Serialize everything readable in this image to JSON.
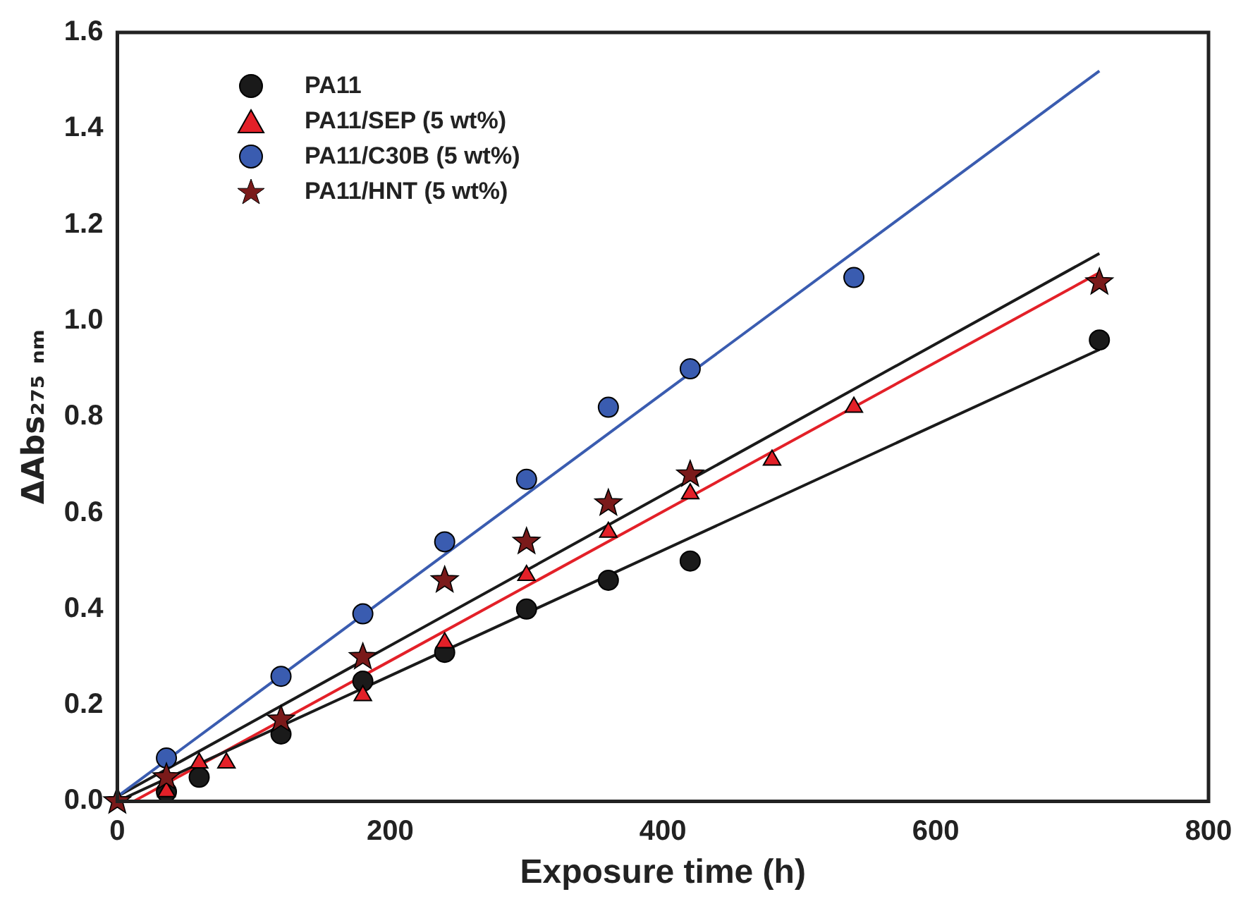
{
  "chart_data": {
    "type": "scatter",
    "xlabel": "Exposure time (h)",
    "ylabel": "ΔAbs₂₇₅ ₙₘ",
    "xlim": [
      0,
      800
    ],
    "xticks": [
      0,
      200,
      400,
      600,
      800
    ],
    "ylim": [
      0,
      1.6
    ],
    "yticks": [
      {
        "value": 0,
        "label": "0.0"
      },
      {
        "value": 0.2,
        "label": "0.2"
      },
      {
        "value": 0.4,
        "label": "0.4"
      },
      {
        "value": 0.6,
        "label": "0.6"
      },
      {
        "value": 0.8,
        "label": "0.8"
      },
      {
        "value": 1,
        "label": "1.0"
      },
      {
        "value": 1.2,
        "label": "1.2"
      },
      {
        "value": 1.4,
        "label": "1.4"
      },
      {
        "value": 1.6,
        "label": "1.6"
      }
    ],
    "grid": false,
    "legend": "top left",
    "series": [
      {
        "name": "PA11",
        "marker": "circle",
        "color": "#1a1a1a",
        "x": [
          36,
          60,
          120,
          180,
          240,
          300,
          360,
          420,
          720
        ],
        "values": [
          0.02,
          0.05,
          0.14,
          0.25,
          0.31,
          0.4,
          0.46,
          0.5,
          0.96
        ]
      },
      {
        "name": "PA11/SEP (5 wt%)",
        "marker": "triangle",
        "color": "#e32028",
        "x": [
          36,
          60,
          80,
          180,
          240,
          300,
          360,
          420,
          480,
          540
        ],
        "values": [
          0.02,
          0.08,
          0.08,
          0.22,
          0.33,
          0.47,
          0.56,
          0.64,
          0.71,
          0.82
        ]
      },
      {
        "name": "PA11/C30B (5 wt%)",
        "marker": "circle",
        "color": "#3a5cb0",
        "x": [
          36,
          120,
          180,
          240,
          300,
          360,
          420,
          540
        ],
        "values": [
          0.09,
          0.26,
          0.39,
          0.54,
          0.67,
          0.82,
          0.9,
          1.09
        ]
      },
      {
        "name": "PA11/HNT (5 wt%)",
        "marker": "star",
        "color": "#7a1a1a",
        "x": [
          0,
          36,
          120,
          180,
          240,
          300,
          360,
          420,
          720
        ],
        "values": [
          0,
          0.05,
          0.17,
          0.3,
          0.46,
          0.54,
          0.62,
          0.68,
          1.08
        ]
      },
      {
        "type": "line",
        "marker": "none",
        "color": "#1a1a1a",
        "x": [
          0,
          720
        ],
        "values": [
          0,
          0.94
        ]
      },
      {
        "type": "line",
        "marker": "none",
        "color": "#e32028",
        "x": [
          12,
          720
        ],
        "values": [
          0,
          1.1
        ]
      },
      {
        "type": "line",
        "marker": "none",
        "color": "#3a5cb0",
        "x": [
          0,
          720
        ],
        "values": [
          0.01,
          1.52
        ]
      },
      {
        "type": "line",
        "marker": "none",
        "color": "#1a1a1a",
        "x": [
          0,
          720
        ],
        "values": [
          0.01,
          1.14
        ]
      }
    ]
  }
}
